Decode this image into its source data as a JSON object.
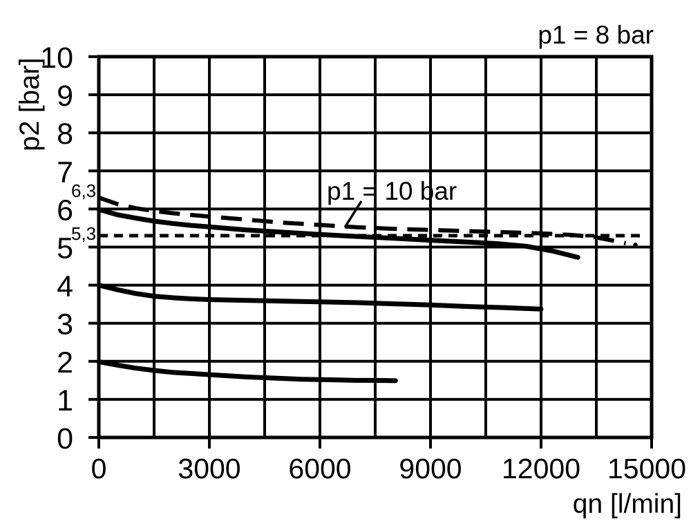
{
  "chart_data": {
    "type": "line",
    "title": "p1 = 8 bar",
    "annotation": {
      "text": "p1 = 10 bar"
    },
    "xlabel": "qn [l/min]",
    "ylabel": "p2 [bar]",
    "xlim": [
      0,
      15000
    ],
    "ylim": [
      0,
      10
    ],
    "x_ticks": [
      0,
      3000,
      6000,
      9000,
      12000,
      15000
    ],
    "y_ticks": [
      0,
      1,
      2,
      3,
      4,
      5,
      6,
      7,
      8,
      9,
      10
    ],
    "grid": {
      "on": true,
      "x_step": 1500,
      "y_step": 1
    },
    "colors": {
      "ink": "#000000",
      "background": "#ffffff"
    },
    "legend_position": "none",
    "reference_labels": [
      {
        "text": "6,3",
        "y": 6.3
      },
      {
        "text": "5,3",
        "y": 5.3
      }
    ],
    "reference_lines": [
      {
        "id": "set-5-3",
        "y": 5.3,
        "x_range": [
          0,
          14700
        ],
        "style": "short-dash"
      }
    ],
    "series": [
      {
        "id": "p1-10bar-dashed",
        "style": "long-dash",
        "points": [
          [
            0,
            6.3
          ],
          [
            500,
            6.13
          ],
          [
            1000,
            6.02
          ],
          [
            1500,
            5.95
          ],
          [
            2000,
            5.89
          ],
          [
            3000,
            5.8
          ],
          [
            4000,
            5.72
          ],
          [
            5000,
            5.64
          ],
          [
            6000,
            5.58
          ],
          [
            7000,
            5.52
          ],
          [
            8000,
            5.48
          ],
          [
            9000,
            5.45
          ],
          [
            10000,
            5.42
          ],
          [
            11000,
            5.39
          ],
          [
            12000,
            5.36
          ],
          [
            12800,
            5.32
          ],
          [
            13400,
            5.27
          ],
          [
            13900,
            5.18
          ],
          [
            14300,
            5.1
          ]
        ],
        "end_dot": [
          14560,
          5.06
        ]
      },
      {
        "id": "p1-8bar-set-6",
        "style": "solid",
        "points": [
          [
            0,
            5.99
          ],
          [
            500,
            5.85
          ],
          [
            1000,
            5.76
          ],
          [
            1500,
            5.68
          ],
          [
            2000,
            5.62
          ],
          [
            2500,
            5.57
          ],
          [
            3000,
            5.53
          ],
          [
            4000,
            5.45
          ],
          [
            5000,
            5.39
          ],
          [
            6000,
            5.33
          ],
          [
            7000,
            5.28
          ],
          [
            8000,
            5.23
          ],
          [
            9000,
            5.18
          ],
          [
            10000,
            5.13
          ],
          [
            10800,
            5.09
          ],
          [
            11600,
            5.02
          ],
          [
            12300,
            4.9
          ],
          [
            13000,
            4.73
          ]
        ]
      },
      {
        "id": "p1-8bar-set-4",
        "style": "solid",
        "points": [
          [
            0,
            4.0
          ],
          [
            500,
            3.88
          ],
          [
            1000,
            3.78
          ],
          [
            1500,
            3.71
          ],
          [
            2000,
            3.67
          ],
          [
            2500,
            3.64
          ],
          [
            3000,
            3.62
          ],
          [
            4000,
            3.6
          ],
          [
            5000,
            3.58
          ],
          [
            6000,
            3.56
          ],
          [
            7000,
            3.54
          ],
          [
            8000,
            3.51
          ],
          [
            9000,
            3.48
          ],
          [
            10000,
            3.44
          ],
          [
            11000,
            3.41
          ],
          [
            12000,
            3.37
          ]
        ]
      },
      {
        "id": "p1-8bar-set-2",
        "style": "solid",
        "points": [
          [
            0,
            1.99
          ],
          [
            500,
            1.9
          ],
          [
            1000,
            1.82
          ],
          [
            1500,
            1.76
          ],
          [
            2000,
            1.71
          ],
          [
            2500,
            1.68
          ],
          [
            3000,
            1.65
          ],
          [
            3500,
            1.62
          ],
          [
            4000,
            1.59
          ],
          [
            4500,
            1.57
          ],
          [
            5000,
            1.55
          ],
          [
            5500,
            1.53
          ],
          [
            6000,
            1.52
          ],
          [
            6500,
            1.51
          ],
          [
            7000,
            1.5
          ],
          [
            7500,
            1.5
          ],
          [
            8050,
            1.49
          ]
        ]
      }
    ]
  }
}
